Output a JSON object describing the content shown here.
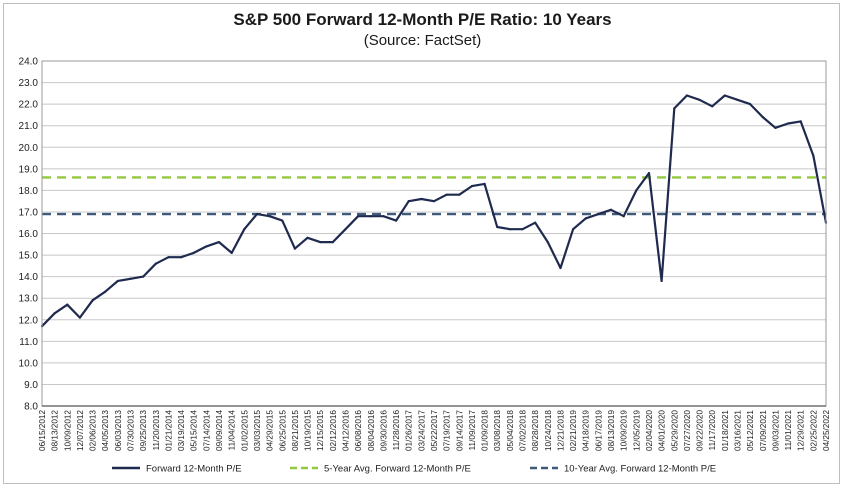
{
  "chart_data": {
    "type": "line",
    "title": "S&P 500 Forward 12-Month P/E Ratio: 10 Years",
    "subtitle": "(Source: FactSet)",
    "xlabel": "",
    "ylabel": "",
    "ylim": [
      8.0,
      24.0
    ],
    "y_ticks": [
      "24.0",
      "23.0",
      "22.0",
      "21.0",
      "20.0",
      "19.0",
      "18.0",
      "17.0",
      "16.0",
      "15.0",
      "14.0",
      "13.0",
      "12.0",
      "11.0",
      "10.0",
      "9.0",
      "8.0"
    ],
    "x_ticks": [
      "06/15/2012",
      "08/13/2012",
      "10/09/2012",
      "12/07/2012",
      "02/06/2013",
      "04/05/2013",
      "06/03/2013",
      "07/30/2013",
      "09/25/2013",
      "11/20/2013",
      "01/21/2014",
      "03/19/2014",
      "05/15/2014",
      "07/14/2014",
      "09/09/2014",
      "11/04/2014",
      "01/02/2015",
      "03/03/2015",
      "04/29/2015",
      "06/25/2015",
      "08/21/2015",
      "10/19/2015",
      "12/15/2015",
      "02/12/2016",
      "04/12/2016",
      "06/08/2016",
      "08/04/2016",
      "09/30/2016",
      "11/28/2016",
      "01/26/2017",
      "03/24/2017",
      "05/22/2017",
      "07/19/2017",
      "09/14/2017",
      "11/09/2017",
      "01/09/2018",
      "03/08/2018",
      "05/04/2018",
      "07/02/2018",
      "08/28/2018",
      "10/24/2018",
      "12/21/2018",
      "02/21/2019",
      "04/18/2019",
      "06/17/2019",
      "08/13/2019",
      "10/09/2019",
      "12/05/2019",
      "02/04/2020",
      "04/01/2020",
      "05/29/2020",
      "07/27/2020",
      "09/22/2020",
      "11/17/2020",
      "01/18/2021",
      "03/16/2021",
      "05/12/2021",
      "07/09/2021",
      "09/03/2021",
      "11/01/2021",
      "12/29/2021",
      "02/25/2022",
      "04/25/2022"
    ],
    "grid": true,
    "legend_position": "bottom",
    "series": [
      {
        "name": "Forward 12-Month P/E",
        "color": "#1f2a4f",
        "style": "solid",
        "values": [
          11.7,
          12.3,
          12.7,
          12.1,
          12.9,
          13.3,
          13.8,
          13.9,
          14.0,
          14.6,
          14.9,
          14.9,
          15.1,
          15.4,
          15.6,
          15.1,
          16.2,
          16.9,
          16.8,
          16.6,
          15.3,
          15.8,
          15.6,
          15.6,
          16.2,
          16.8,
          16.8,
          16.8,
          16.6,
          17.5,
          17.6,
          17.5,
          17.8,
          17.8,
          18.2,
          18.3,
          16.3,
          16.2,
          16.2,
          16.5,
          15.6,
          14.4,
          16.2,
          16.7,
          16.9,
          17.1,
          16.8,
          18.0,
          18.8,
          13.8,
          21.8,
          22.4,
          22.2,
          21.9,
          22.4,
          22.2,
          22.0,
          21.4,
          20.9,
          21.1,
          21.2,
          19.6,
          16.5
        ]
      },
      {
        "name": "5-Year Avg. Forward 12-Month P/E",
        "color": "#92c83e",
        "style": "dashed",
        "values": [
          18.6
        ]
      },
      {
        "name": "10-Year Avg. Forward 12-Month P/E",
        "color": "#3f5a7a",
        "style": "dashed",
        "values": [
          16.9
        ]
      }
    ]
  }
}
